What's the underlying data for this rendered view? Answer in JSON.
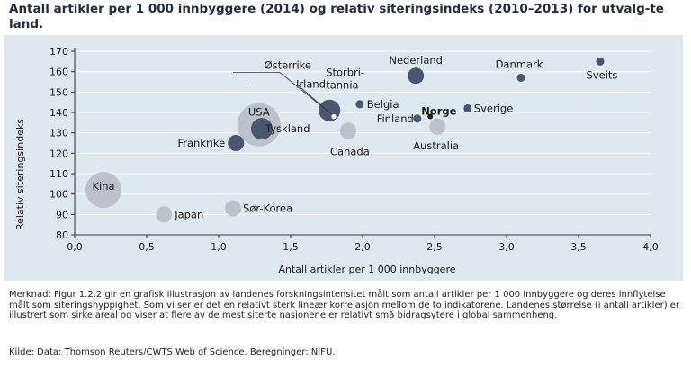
{
  "title": "Antall artikler per 1 000 innbyggere (2014) og relativ siteringsindeks (2010–2013) for utvalg-te land.",
  "note": "Merknad: Figur 1.2.2 gir en grafisk illustrasjon av landenes forskningsintensitet målt som antall artikler per 1 000 innbyggere og deres innflytelse målt som siteringshyppighet. Som vi ser er det en relativt sterk lineær korrelasjon mellom de to indikatorene. Landenes størrelse (i antall artikler) er illustrert som sirkelareal og viser at flere av de mest siterte nasjonene er relativt små bidragsytere i global sammenheng.",
  "source": "Kilde: Data: Thomson Reuters/CWTS Web of Science. Beregninger: NIFU.",
  "colors": {
    "background": "#dfe7ef",
    "dark": "#4a5670",
    "light": "#b8bdc6",
    "norway": "#1a2233"
  },
  "chart_data": {
    "type": "scatter",
    "xlabel": "Antall artikler per 1 000 innbyggere",
    "ylabel": "Relativ siteringsindeks",
    "xlim": [
      0,
      4.0
    ],
    "ylim": [
      80,
      170
    ],
    "xticks": [
      "0,0",
      "0,5",
      "1,0",
      "1,5",
      "2,0",
      "2,5",
      "3,0",
      "3,5",
      "4,0"
    ],
    "yticks": [
      "80",
      "90",
      "100",
      "110",
      "120",
      "130",
      "140",
      "150",
      "160",
      "170"
    ],
    "grid": "horizontal",
    "points": [
      {
        "name": "Kina",
        "x": 0.2,
        "y": 102,
        "tone": "light",
        "size": "very-large"
      },
      {
        "name": "Japan",
        "x": 0.62,
        "y": 90,
        "tone": "light",
        "size": "small"
      },
      {
        "name": "Sør-Korea",
        "x": 1.1,
        "y": 93,
        "tone": "light",
        "size": "small"
      },
      {
        "name": "Frankrike",
        "x": 1.12,
        "y": 125,
        "tone": "dark",
        "size": "small"
      },
      {
        "name": "USA",
        "x": 1.28,
        "y": 134,
        "tone": "light",
        "size": "largest"
      },
      {
        "name": "Tyskland",
        "x": 1.3,
        "y": 132,
        "tone": "dark",
        "size": "medium"
      },
      {
        "name": "Storbritannia",
        "x": 1.77,
        "y": 141,
        "tone": "dark",
        "size": "medium"
      },
      {
        "name": "Irland",
        "x": 1.8,
        "y": 138,
        "tone": "light",
        "size": "tiny"
      },
      {
        "name": "Østerrike",
        "x": 1.8,
        "y": 138,
        "tone": "light",
        "size": "tiny"
      },
      {
        "name": "Canada",
        "x": 1.9,
        "y": 131,
        "tone": "light",
        "size": "small"
      },
      {
        "name": "Belgia",
        "x": 1.98,
        "y": 144,
        "tone": "dark",
        "size": "tiny"
      },
      {
        "name": "Nederland",
        "x": 2.37,
        "y": 158,
        "tone": "dark",
        "size": "small"
      },
      {
        "name": "Finland",
        "x": 2.38,
        "y": 137,
        "tone": "dark",
        "size": "tiny"
      },
      {
        "name": "Norge",
        "x": 2.47,
        "y": 138,
        "tone": "norway",
        "size": "dot"
      },
      {
        "name": "Australia",
        "x": 2.52,
        "y": 133,
        "tone": "light",
        "size": "small"
      },
      {
        "name": "Sverige",
        "x": 2.73,
        "y": 142,
        "tone": "dark",
        "size": "tiny"
      },
      {
        "name": "Danmark",
        "x": 3.1,
        "y": 157,
        "tone": "dark",
        "size": "tiny"
      },
      {
        "name": "Sveits",
        "x": 3.65,
        "y": 165,
        "tone": "dark",
        "size": "tiny"
      }
    ],
    "display_labels": {
      "Storbritannia": [
        "Storbri-",
        "tannia"
      ]
    }
  }
}
